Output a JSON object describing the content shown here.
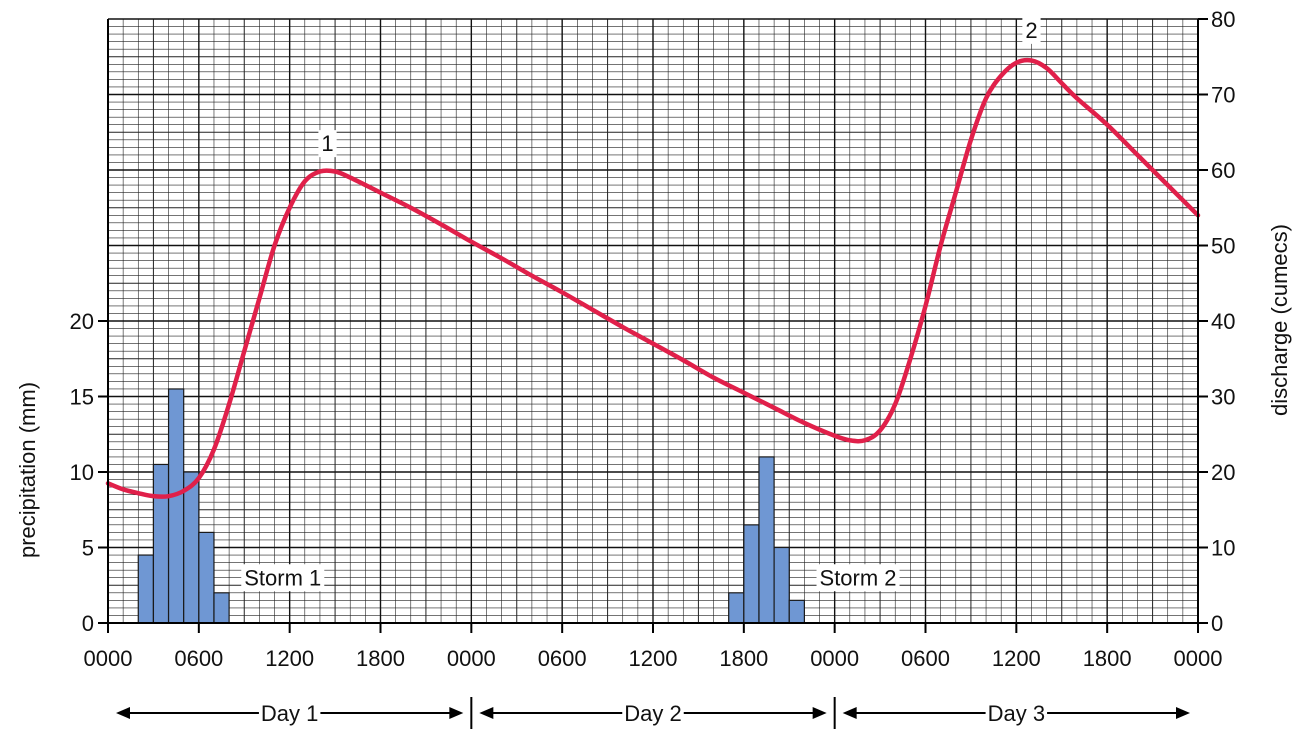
{
  "chart_data": {
    "type": "bar+line",
    "x_axis": {
      "unit": "hours",
      "range_hours": [
        0,
        72
      ],
      "tick_labels": [
        "0000",
        "0600",
        "1200",
        "1800",
        "0000",
        "0600",
        "1200",
        "1800",
        "0000",
        "0600",
        "1200",
        "1800",
        "0000"
      ]
    },
    "left_axis": {
      "label": "precipitation (mm)",
      "ylim": [
        0,
        40
      ],
      "ticks": [
        0,
        5,
        10,
        15,
        20
      ]
    },
    "right_axis": {
      "label": "discharge (cumecs)",
      "ylim": [
        0,
        80
      ],
      "ticks": [
        0,
        10,
        20,
        30,
        40,
        50,
        60,
        70,
        80
      ]
    },
    "grid": "graph paper (fine and major gridlines)",
    "precipitation_bars": {
      "bar_width_hours": 1,
      "color": "#6f97d3",
      "bars": [
        {
          "start_hour": 2,
          "value": 4.5
        },
        {
          "start_hour": 3,
          "value": 10.5
        },
        {
          "start_hour": 4,
          "value": 15.5
        },
        {
          "start_hour": 5,
          "value": 10
        },
        {
          "start_hour": 6,
          "value": 6
        },
        {
          "start_hour": 7,
          "value": 2
        },
        {
          "start_hour": 41,
          "value": 2
        },
        {
          "start_hour": 42,
          "value": 6.5
        },
        {
          "start_hour": 43,
          "value": 11
        },
        {
          "start_hour": 44,
          "value": 5
        },
        {
          "start_hour": 45,
          "value": 1.5
        }
      ]
    },
    "discharge_line": {
      "color": "#e0204a",
      "points": [
        [
          0,
          18.5
        ],
        [
          1,
          17.7
        ],
        [
          2,
          17.2
        ],
        [
          3,
          16.8
        ],
        [
          4,
          16.8
        ],
        [
          5,
          17.5
        ],
        [
          6,
          19.2
        ],
        [
          7,
          23
        ],
        [
          8,
          29
        ],
        [
          9,
          36
        ],
        [
          10,
          43
        ],
        [
          11,
          50
        ],
        [
          12,
          55
        ],
        [
          13,
          58.5
        ],
        [
          14,
          59.8
        ],
        [
          15,
          59.8
        ],
        [
          16,
          59
        ],
        [
          18,
          57
        ],
        [
          20,
          55
        ],
        [
          22,
          52.8
        ],
        [
          24,
          50.5
        ],
        [
          26,
          48.3
        ],
        [
          28,
          46
        ],
        [
          30,
          43.8
        ],
        [
          32,
          41.5
        ],
        [
          34,
          39.2
        ],
        [
          36,
          37
        ],
        [
          38,
          34.8
        ],
        [
          40,
          32.5
        ],
        [
          42,
          30.5
        ],
        [
          44,
          28.5
        ],
        [
          46,
          26.5
        ],
        [
          48,
          24.8
        ],
        [
          49,
          24.2
        ],
        [
          50,
          24.2
        ],
        [
          51,
          25.5
        ],
        [
          52,
          29
        ],
        [
          53,
          35
        ],
        [
          54,
          42
        ],
        [
          55,
          50
        ],
        [
          56,
          57
        ],
        [
          57,
          64
        ],
        [
          58,
          69.5
        ],
        [
          59,
          72.5
        ],
        [
          60,
          74.2
        ],
        [
          61,
          74.5
        ],
        [
          62,
          73.5
        ],
        [
          63,
          71.5
        ],
        [
          64,
          69.5
        ],
        [
          66,
          66
        ],
        [
          68,
          62
        ],
        [
          70,
          58
        ],
        [
          72,
          54
        ],
        [
          74,
          50.5
        ],
        [
          76,
          47.5
        ],
        [
          77,
          46
        ],
        [
          78,
          45
        ]
      ]
    },
    "annotations": [
      {
        "text": "1",
        "hour": 14.5,
        "discharge": 62.5
      },
      {
        "text": "2",
        "hour": 61,
        "discharge": 77.5
      },
      {
        "text": "Storm 1",
        "hour": 9,
        "precipitation": 2.5
      },
      {
        "text": "Storm 2",
        "hour": 47,
        "precipitation": 2.5
      }
    ],
    "periods": [
      {
        "label": "Day 1",
        "start_hour": 0,
        "end_hour": 24
      },
      {
        "label": "Day 2",
        "start_hour": 24,
        "end_hour": 48
      },
      {
        "label": "Day 3",
        "start_hour": 48,
        "end_hour": 72
      }
    ]
  }
}
